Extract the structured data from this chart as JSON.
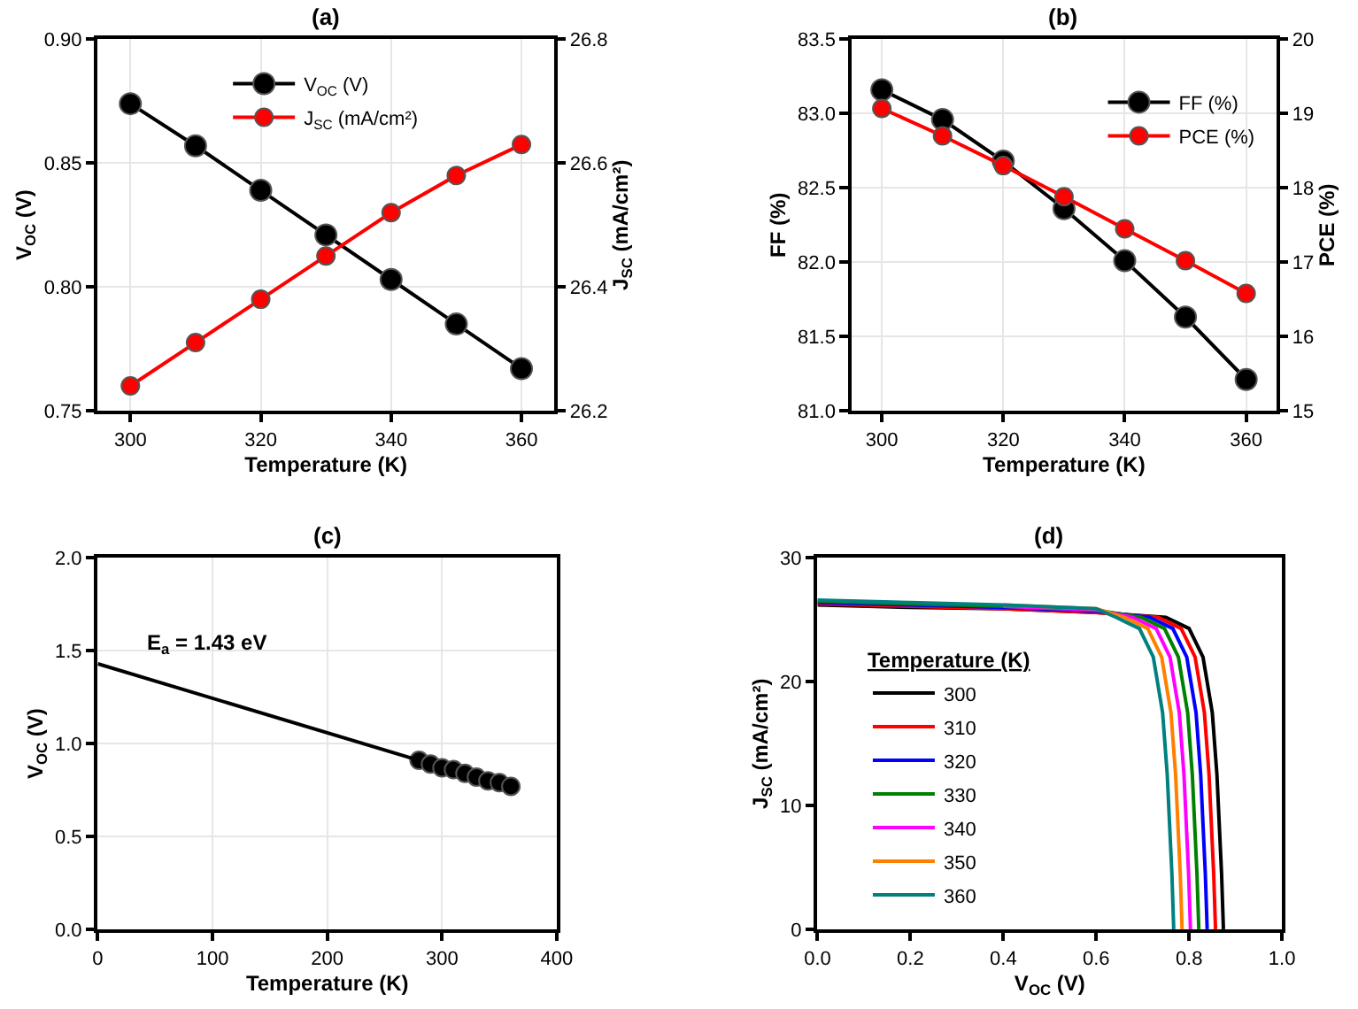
{
  "chart_data": [
    {
      "type": "line",
      "title": "(a)",
      "xlabel": "Temperature (K)",
      "ylabel": "V$_{OC}$ (V)",
      "y2label": "J$_{SC}$ (mA/cm²)",
      "x": [
        300,
        310,
        320,
        330,
        340,
        350,
        360
      ],
      "series": [
        {
          "name": "V$_{OC}$ (V)",
          "color": "#000000",
          "values": [
            0.874,
            0.857,
            0.839,
            0.821,
            0.803,
            0.785,
            0.767
          ]
        },
        {
          "name": "J$_{SC}$ (mA/cm²)",
          "color": "#ff0000",
          "axis": "y2",
          "values": [
            26.24,
            26.31,
            26.38,
            26.45,
            26.52,
            26.58,
            26.63
          ]
        }
      ],
      "xlim": [
        295,
        365
      ],
      "xticks": [
        300,
        320,
        340,
        360
      ],
      "ylim": [
        0.75,
        0.9
      ],
      "yticks": [
        0.75,
        {
          "value": 0.8,
          "label": "0.80"
        },
        0.85,
        {
          "value": 0.9,
          "label": "0.90"
        }
      ],
      "y2lim": [
        26.2,
        26.8
      ],
      "y2ticks": [
        26.2,
        26.4,
        26.6,
        26.8
      ],
      "grid": true,
      "legend": "top",
      "marker": "circle",
      "line_style": "solid"
    },
    {
      "type": "line",
      "title": "(b)",
      "xlabel": "Temperature (K)",
      "ylabel": "FF (%)",
      "y2label": "PCE (%)",
      "x": [
        300,
        310,
        320,
        330,
        340,
        350,
        360
      ],
      "series": [
        {
          "name": "FF (%)",
          "color": "#000000",
          "values": [
            83.16,
            82.96,
            82.68,
            82.36,
            82.01,
            81.63,
            81.21
          ]
        },
        {
          "name": "PCE (%)",
          "color": "#ff0000",
          "axis": "y2",
          "values": [
            19.07,
            18.7,
            18.3,
            17.88,
            17.45,
            17.02,
            16.58
          ]
        }
      ],
      "xlim": [
        295,
        365
      ],
      "xticks": [
        300,
        320,
        340,
        360
      ],
      "ylim": [
        81,
        83.5
      ],
      "yticks": [
        {
          "value": 81,
          "label": "81.0"
        },
        81.5,
        {
          "value": 82,
          "label": "82.0"
        },
        82.5,
        {
          "value": 83,
          "label": "83.0"
        },
        83.5
      ],
      "y2lim": [
        15,
        20
      ],
      "y2ticks": [
        15,
        16,
        17,
        18,
        19,
        20
      ],
      "grid": true,
      "legend": "top right",
      "marker": "circle",
      "line_style": "solid"
    },
    {
      "type": "scatter",
      "title": "(c)",
      "xlabel": "Temperature (K)",
      "ylabel": "V$_{OC}$ (V)",
      "x": [
        280,
        290,
        300,
        310,
        320,
        330,
        340,
        350,
        360
      ],
      "series": [
        {
          "color": "#000000",
          "values": [
            0.91,
            0.89,
            0.87,
            0.86,
            0.84,
            0.82,
            0.8,
            0.79,
            0.77
          ]
        },
        {
          "type": "line",
          "color": "#000000",
          "marker": "none",
          "x": [
            280,
            0
          ],
          "values": [
            0.91,
            1.43
          ]
        }
      ],
      "annotations": [
        "E$_{a}$ = 1.43 eV"
      ],
      "xlim": [
        0,
        400
      ],
      "xticks": [
        0,
        100,
        200,
        300,
        400
      ],
      "ylim": [
        0,
        2
      ],
      "yticks": [
        {
          "value": 0,
          "label": "0.0"
        },
        0.5,
        {
          "value": 1,
          "label": "1.0"
        },
        1.5,
        {
          "value": 2,
          "label": "2.0"
        }
      ],
      "grid": true,
      "legend": false,
      "marker": "circle"
    },
    {
      "type": "line",
      "title": "(d)",
      "xlabel": "V$_{OC}$ (V)",
      "ylabel": "J$_{SC}$ (mA/cm²)",
      "legend_title": "Temperature (K)",
      "series": [
        {
          "name": "300",
          "color": "#000000",
          "x": [
            0,
            0.2,
            0.4,
            0.6,
            0.75,
            0.8,
            0.83,
            0.85,
            0.86,
            0.87,
            0.874
          ],
          "values": [
            26.2,
            26.0,
            25.9,
            25.6,
            25.2,
            24.3,
            22.0,
            17.5,
            12.5,
            4.5,
            0
          ]
        },
        {
          "name": "310",
          "color": "#ff0000",
          "x": [
            0,
            0.2,
            0.4,
            0.6,
            0.733,
            0.783,
            0.813,
            0.833,
            0.843,
            0.853,
            0.857
          ],
          "values": [
            26.3,
            26.1,
            25.9,
            25.6,
            25.2,
            24.3,
            22.0,
            17.5,
            12.5,
            4.5,
            0
          ]
        },
        {
          "name": "320",
          "color": "#0000ff",
          "x": [
            0,
            0.2,
            0.4,
            0.6,
            0.715,
            0.765,
            0.795,
            0.815,
            0.825,
            0.835,
            0.839
          ],
          "values": [
            26.4,
            26.2,
            26.0,
            25.7,
            25.2,
            24.3,
            22.0,
            17.5,
            12.5,
            4.5,
            0
          ]
        },
        {
          "name": "330",
          "color": "#008000",
          "x": [
            0,
            0.2,
            0.4,
            0.6,
            0.697,
            0.747,
            0.777,
            0.797,
            0.807,
            0.817,
            0.821
          ],
          "values": [
            26.5,
            26.3,
            26.1,
            25.8,
            25.2,
            24.3,
            22.0,
            17.5,
            12.5,
            4.5,
            0
          ]
        },
        {
          "name": "340",
          "color": "#ff00ff",
          "x": [
            0.4,
            0.6,
            0.679,
            0.729,
            0.759,
            0.779,
            0.789,
            0.799,
            0.803
          ],
          "values": [
            26.1,
            25.8,
            25.2,
            24.3,
            22.0,
            17.5,
            12.5,
            4.5,
            0
          ]
        },
        {
          "name": "350",
          "color": "#ff8000",
          "x": [
            0.4,
            0.6,
            0.661,
            0.711,
            0.741,
            0.761,
            0.771,
            0.781,
            0.785
          ],
          "values": [
            26.2,
            25.9,
            25.2,
            24.3,
            22.0,
            17.5,
            12.5,
            4.5,
            0
          ]
        },
        {
          "name": "360",
          "color": "#008080",
          "x": [
            0,
            0.2,
            0.4,
            0.6,
            0.643,
            0.693,
            0.723,
            0.743,
            0.753,
            0.763,
            0.767
          ],
          "values": [
            26.6,
            26.4,
            26.2,
            25.9,
            25.2,
            24.3,
            22.0,
            17.5,
            12.5,
            4.5,
            0
          ]
        }
      ],
      "xlim": [
        0,
        1
      ],
      "xticks": [
        {
          "value": 0,
          "label": "0.0"
        },
        0.2,
        0.4,
        0.6,
        0.8,
        {
          "value": 1,
          "label": "1.0"
        }
      ],
      "ylim": [
        0,
        30
      ],
      "yticks": [
        0,
        10,
        20,
        30
      ],
      "grid": false,
      "legend": "left",
      "marker": "none",
      "line_style": "solid"
    }
  ]
}
